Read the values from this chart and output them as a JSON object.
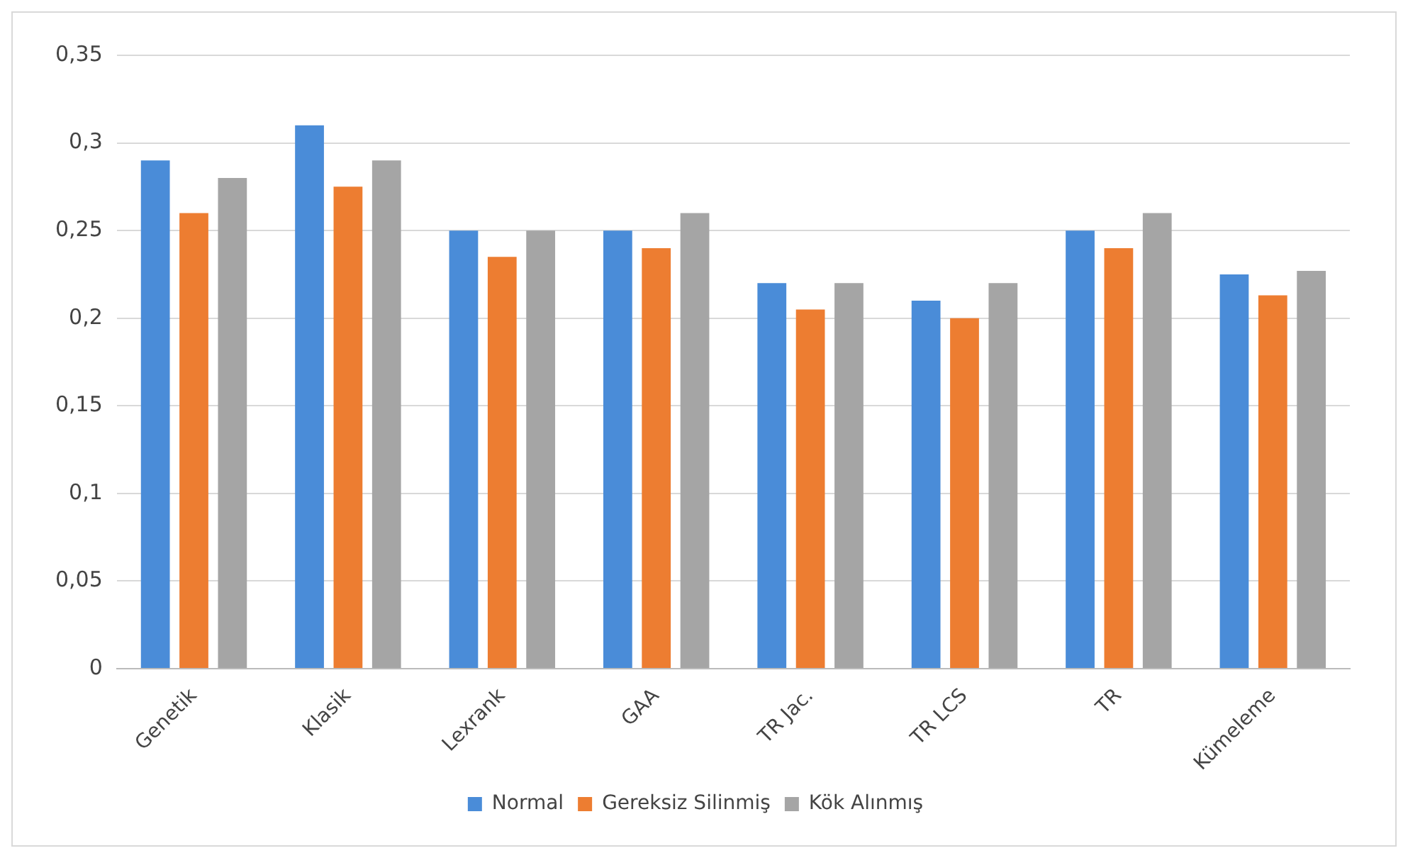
{
  "chart_data": {
    "type": "bar",
    "categories": [
      "Genetik",
      "Klasik",
      "Lexrank",
      "GAA",
      "TR Jac.",
      "TR LCS",
      "TR",
      "Kümeleme"
    ],
    "series": [
      {
        "name": "Normal",
        "color": "#4a8cd8",
        "values": [
          0.29,
          0.31,
          0.25,
          0.25,
          0.22,
          0.21,
          0.25,
          0.225
        ]
      },
      {
        "name": "Gereksiz Silinmiş",
        "color": "#ed7d31",
        "values": [
          0.26,
          0.275,
          0.235,
          0.24,
          0.205,
          0.2,
          0.24,
          0.213
        ]
      },
      {
        "name": "Kök Alınmış",
        "color": "#a5a5a5",
        "values": [
          0.28,
          0.29,
          0.25,
          0.26,
          0.22,
          0.22,
          0.26,
          0.227
        ]
      }
    ],
    "ylim": [
      0,
      0.35
    ],
    "yticks": [
      0,
      {
        "value": 0.05,
        "label": "0,05"
      },
      {
        "value": 0.1,
        "label": "0,1"
      },
      {
        "value": 0.15,
        "label": "0,15"
      },
      {
        "value": 0.2,
        "label": "0,2"
      },
      {
        "value": 0.25,
        "label": "0,25"
      },
      {
        "value": 0.3,
        "label": "0,3"
      },
      {
        "value": 0.35,
        "label": "0,35"
      }
    ],
    "grid": "y",
    "legend": "bottom"
  }
}
